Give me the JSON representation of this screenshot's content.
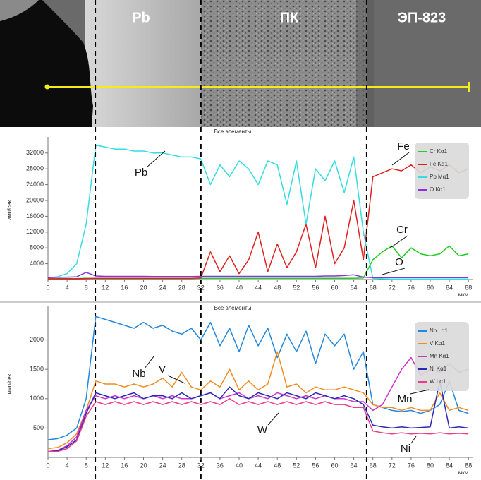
{
  "image": {
    "labels": [
      "Pb",
      "ПК",
      "ЭП-823"
    ]
  },
  "chart_data": [
    {
      "type": "line",
      "title": "Все элементы",
      "y_label": "имп/сек",
      "x_label": "мкм",
      "x": [
        0,
        2,
        4,
        6,
        8,
        10,
        12,
        14,
        16,
        18,
        20,
        22,
        24,
        26,
        28,
        30,
        32,
        34,
        36,
        38,
        40,
        42,
        44,
        46,
        48,
        50,
        52,
        54,
        56,
        58,
        60,
        62,
        64,
        66,
        68,
        70,
        72,
        74,
        76,
        78,
        80,
        82,
        84,
        86,
        88
      ],
      "xlim": [
        0,
        89
      ],
      "xticks": [
        0,
        4,
        8,
        12,
        16,
        20,
        24,
        28,
        32,
        36,
        40,
        44,
        48,
        52,
        56,
        60,
        64,
        68,
        72,
        76,
        80,
        84,
        88
      ],
      "ylim": [
        0,
        35000
      ],
      "yticks": [
        4000,
        8000,
        12000,
        16000,
        20000,
        24000,
        28000,
        32000
      ],
      "boundaries": [
        9.9,
        32,
        66.7
      ],
      "annotations": [
        "Fe",
        "Pb",
        "Cr",
        "O"
      ],
      "series": [
        {
          "name": "Cr Kα1",
          "color": "#22cc22",
          "values": [
            200,
            200,
            250,
            250,
            300,
            250,
            250,
            250,
            250,
            250,
            250,
            250,
            250,
            250,
            250,
            250,
            300,
            300,
            300,
            300,
            300,
            300,
            300,
            300,
            300,
            300,
            300,
            300,
            300,
            300,
            300,
            300,
            300,
            400,
            5000,
            7000,
            8500,
            5500,
            8000,
            6500,
            6000,
            6500,
            8500,
            6000,
            6500
          ]
        },
        {
          "name": "Fe Kα1",
          "color": "#e02020",
          "values": [
            200,
            200,
            200,
            200,
            250,
            300,
            300,
            300,
            300,
            300,
            300,
            300,
            300,
            300,
            300,
            300,
            400,
            7000,
            2000,
            6000,
            1500,
            5000,
            12000,
            2000,
            9000,
            3000,
            7000,
            14000,
            3000,
            16000,
            4000,
            8000,
            20000,
            5000,
            26000,
            27000,
            28000,
            27500,
            29000,
            27000,
            28500,
            27500,
            29000,
            27000,
            28000
          ]
        },
        {
          "name": "Pb Mα1",
          "color": "#33dde0",
          "values": [
            500,
            700,
            1500,
            4000,
            14000,
            34000,
            33500,
            33000,
            33000,
            32500,
            32500,
            32000,
            32000,
            31500,
            31000,
            31000,
            30500,
            24000,
            29000,
            26000,
            30000,
            28000,
            24000,
            30000,
            29000,
            19000,
            30000,
            14000,
            28000,
            25000,
            30000,
            22000,
            31000,
            12000,
            300,
            200,
            150,
            150,
            150,
            150,
            150,
            150,
            150,
            150,
            150
          ]
        },
        {
          "name": "O Kα1",
          "color": "#8833dd",
          "values": [
            500,
            550,
            600,
            700,
            1800,
            900,
            800,
            800,
            800,
            800,
            800,
            750,
            750,
            750,
            750,
            750,
            800,
            800,
            800,
            800,
            800,
            800,
            800,
            800,
            800,
            800,
            800,
            800,
            800,
            900,
            900,
            1000,
            1200,
            600,
            500,
            500,
            500,
            500,
            500,
            500,
            500,
            500,
            500,
            500,
            500
          ]
        }
      ]
    },
    {
      "type": "line",
      "title": "Все элементы",
      "y_label": "имп/сек",
      "x_label": "мкм",
      "x": [
        0,
        2,
        4,
        6,
        8,
        10,
        12,
        14,
        16,
        18,
        20,
        22,
        24,
        26,
        28,
        30,
        32,
        34,
        36,
        38,
        40,
        42,
        44,
        46,
        48,
        50,
        52,
        54,
        56,
        58,
        60,
        62,
        64,
        66,
        68,
        70,
        72,
        74,
        76,
        78,
        80,
        82,
        84,
        86,
        88
      ],
      "xlim": [
        0,
        89
      ],
      "xticks": [
        0,
        4,
        8,
        12,
        16,
        20,
        24,
        28,
        32,
        36,
        40,
        44,
        48,
        52,
        56,
        60,
        64,
        68,
        72,
        76,
        80,
        84,
        88
      ],
      "ylim": [
        0,
        2500
      ],
      "yticks": [
        500,
        1000,
        1500,
        2000
      ],
      "annotations": [
        "Nb",
        "V",
        "Mn",
        "W",
        "Ni"
      ],
      "series": [
        {
          "name": "Nb Lα1",
          "color": "#2288dd",
          "values": [
            300,
            320,
            380,
            500,
            1000,
            2400,
            2350,
            2300,
            2250,
            2200,
            2300,
            2200,
            2250,
            2150,
            2100,
            2200,
            2000,
            2300,
            1900,
            2200,
            1800,
            2250,
            1900,
            2200,
            1700,
            2100,
            1800,
            2150,
            1600,
            2100,
            1900,
            2100,
            1500,
            1800,
            900,
            850,
            800,
            780,
            800,
            750,
            800,
            900,
            1300,
            800,
            750
          ]
        },
        {
          "name": "V Kα1",
          "color": "#f08c20",
          "values": [
            150,
            170,
            250,
            400,
            800,
            1300,
            1250,
            1250,
            1200,
            1250,
            1200,
            1250,
            1350,
            1200,
            1450,
            1200,
            1150,
            1300,
            1200,
            1500,
            1150,
            1300,
            1150,
            1250,
            1800,
            1200,
            1250,
            1100,
            1200,
            1150,
            1150,
            1200,
            1150,
            1100,
            900,
            850,
            850,
            800,
            850,
            800,
            800,
            1100,
            800,
            850,
            800
          ]
        },
        {
          "name": "Mn Kα1",
          "color": "#cc33cc",
          "values": [
            100,
            120,
            200,
            350,
            800,
            1050,
            1000,
            1050,
            1000,
            1050,
            1000,
            1050,
            1000,
            1050,
            1000,
            1000,
            1050,
            1100,
            1000,
            1050,
            1100,
            1000,
            1050,
            1000,
            1100,
            1050,
            1000,
            1050,
            1000,
            1050,
            1000,
            1000,
            950,
            950,
            800,
            900,
            1200,
            1500,
            1700,
            1400,
            1500,
            1450,
            1600,
            1450,
            1500
          ]
        },
        {
          "name": "Ni Kα1",
          "color": "#2a2ab8",
          "values": [
            100,
            110,
            180,
            300,
            750,
            1100,
            1050,
            1000,
            1050,
            1100,
            1000,
            1050,
            1050,
            1000,
            1100,
            1000,
            1050,
            1100,
            1000,
            1200,
            1050,
            1000,
            1100,
            1050,
            1000,
            1100,
            1050,
            1000,
            1100,
            1050,
            1000,
            1050,
            1000,
            900,
            550,
            520,
            500,
            520,
            500,
            510,
            520,
            1300,
            500,
            520,
            500
          ]
        },
        {
          "name": "W Lα1",
          "color": "#ee3a8c",
          "values": [
            100,
            100,
            150,
            280,
            700,
            950,
            900,
            950,
            900,
            950,
            900,
            950,
            900,
            950,
            900,
            950,
            900,
            950,
            900,
            1000,
            900,
            950,
            900,
            950,
            900,
            950,
            900,
            950,
            900,
            950,
            900,
            900,
            850,
            850,
            450,
            420,
            400,
            420,
            400,
            410,
            400,
            420,
            400,
            410,
            400
          ]
        }
      ]
    }
  ]
}
